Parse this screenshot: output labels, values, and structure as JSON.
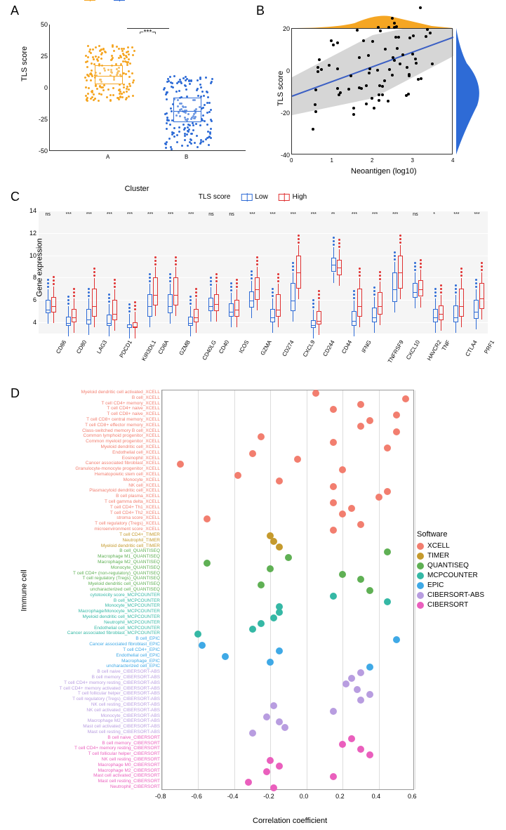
{
  "panelA": {
    "type": "boxplot-jitter",
    "title_label": "A",
    "ylabel": "TLS score",
    "xlabel": "Cluster",
    "legend": [
      {
        "label": "A",
        "color": "#f5a623"
      },
      {
        "label": "B",
        "color": "#2e6bd6"
      }
    ],
    "ylim": [
      -50,
      50
    ],
    "yticks": [
      -50,
      -25,
      0,
      25,
      50
    ],
    "significance": "***",
    "groups": [
      {
        "name": "A",
        "color": "#f5a623",
        "median": 10,
        "q1": 3,
        "q3": 18,
        "whisker_low": -10,
        "whisker_high": 35,
        "jitter_n": 180
      },
      {
        "name": "B",
        "color": "#2e6bd6",
        "median": -18,
        "q1": -27,
        "q3": -8,
        "whisker_low": -48,
        "whisker_high": 10,
        "jitter_n": 180
      }
    ]
  },
  "panelB": {
    "type": "scatter-regression",
    "title_label": "B",
    "xlabel": "Neoantigen (log10)",
    "ylabel": "TLS score",
    "xlim": [
      0,
      4
    ],
    "xticks": [
      0,
      1,
      2,
      3,
      4
    ],
    "ylim": [
      -40,
      20
    ],
    "yticks": [
      -40,
      -20,
      0,
      20
    ],
    "line_color": "#3b5fc4",
    "band_color": "#b0b0b0",
    "marginal_top_color": "#f5a623",
    "marginal_right_color": "#2e6bd6",
    "points_n": 75,
    "slope": 7,
    "intercept": -12
  },
  "panelC": {
    "type": "grouped-boxplot",
    "title_label": "C",
    "ylabel": "Gene expression",
    "legend_title": "TLS score",
    "legend": [
      {
        "label": "Low",
        "color": "#2e6bd6"
      },
      {
        "label": "High",
        "color": "#e03131"
      }
    ],
    "ylim": [
      3,
      14
    ],
    "yticks": [
      4,
      6,
      8,
      10,
      12,
      14
    ],
    "background": "#f0f0f0",
    "genes": [
      {
        "name": "CD86",
        "sig": "ns",
        "low": {
          "med": 5.2,
          "q1": 4.8,
          "q3": 6.0
        },
        "high": {
          "med": 5.5,
          "q1": 4.9,
          "q3": 6.3
        }
      },
      {
        "name": "CD80",
        "sig": "***",
        "low": {
          "med": 4.0,
          "q1": 3.7,
          "q3": 4.5
        },
        "high": {
          "med": 4.5,
          "q1": 4.0,
          "q3": 5.2
        }
      },
      {
        "name": "LAG3",
        "sig": "***",
        "low": {
          "med": 4.3,
          "q1": 3.8,
          "q3": 5.2
        },
        "high": {
          "med": 5.5,
          "q1": 4.5,
          "q3": 7.0
        }
      },
      {
        "name": "PDCD1",
        "sig": "***",
        "low": {
          "med": 4.0,
          "q1": 3.7,
          "q3": 4.7
        },
        "high": {
          "med": 4.8,
          "q1": 4.2,
          "q3": 6.0
        }
      },
      {
        "name": "KIR3DL1",
        "sig": "***",
        "low": {
          "med": 3.6,
          "q1": 3.5,
          "q3": 3.8
        },
        "high": {
          "med": 3.7,
          "q1": 3.5,
          "q3": 4.0
        }
      },
      {
        "name": "CD8A",
        "sig": "***",
        "low": {
          "med": 5.5,
          "q1": 4.5,
          "q3": 6.5
        },
        "high": {
          "med": 6.5,
          "q1": 5.5,
          "q3": 8.0
        }
      },
      {
        "name": "GZMB",
        "sig": "***",
        "low": {
          "med": 5.5,
          "q1": 4.8,
          "q3": 6.5
        },
        "high": {
          "med": 6.5,
          "q1": 5.5,
          "q3": 8.0
        }
      },
      {
        "name": "CD40LG",
        "sig": "***",
        "low": {
          "med": 4.0,
          "q1": 3.7,
          "q3": 4.5
        },
        "high": {
          "med": 4.5,
          "q1": 4.0,
          "q3": 5.2
        }
      },
      {
        "name": "CD40",
        "sig": "ns",
        "low": {
          "med": 5.5,
          "q1": 5.0,
          "q3": 6.2
        },
        "high": {
          "med": 5.7,
          "q1": 5.0,
          "q3": 6.5
        }
      },
      {
        "name": "ICOS",
        "sig": "ns",
        "low": {
          "med": 5.0,
          "q1": 4.5,
          "q3": 5.7
        },
        "high": {
          "med": 5.2,
          "q1": 4.5,
          "q3": 6.0
        }
      },
      {
        "name": "GZMA",
        "sig": "***",
        "low": {
          "med": 6.0,
          "q1": 5.3,
          "q3": 6.8
        },
        "high": {
          "med": 7.0,
          "q1": 6.0,
          "q3": 8.0
        }
      },
      {
        "name": "CD274",
        "sig": "***",
        "low": {
          "med": 4.5,
          "q1": 4.0,
          "q3": 5.2
        },
        "high": {
          "med": 5.2,
          "q1": 4.5,
          "q3": 6.5
        }
      },
      {
        "name": "CXCL9",
        "sig": "***",
        "low": {
          "med": 6.0,
          "q1": 5.0,
          "q3": 7.5
        },
        "high": {
          "med": 8.5,
          "q1": 7.0,
          "q3": 10.0
        }
      },
      {
        "name": "CD244",
        "sig": "***",
        "low": {
          "med": 3.8,
          "q1": 3.5,
          "q3": 4.2
        },
        "high": {
          "med": 4.2,
          "q1": 3.8,
          "q3": 5.0
        }
      },
      {
        "name": "CD44",
        "sig": "**",
        "low": {
          "med": 9.2,
          "q1": 8.5,
          "q3": 9.8
        },
        "high": {
          "med": 9.0,
          "q1": 8.2,
          "q3": 9.6
        }
      },
      {
        "name": "IFNG",
        "sig": "***",
        "low": {
          "med": 4.2,
          "q1": 3.7,
          "q3": 5.0
        },
        "high": {
          "med": 5.5,
          "q1": 4.5,
          "q3": 7.0
        }
      },
      {
        "name": "TNFRSF9",
        "sig": "***",
        "low": {
          "med": 4.5,
          "q1": 4.0,
          "q3": 5.3
        },
        "high": {
          "med": 5.5,
          "q1": 4.7,
          "q3": 6.7
        }
      },
      {
        "name": "CXCL10",
        "sig": "***",
        "low": {
          "med": 7.0,
          "q1": 5.8,
          "q3": 8.5
        },
        "high": {
          "med": 8.5,
          "q1": 7.0,
          "q3": 10.0
        }
      },
      {
        "name": "HAVCR2",
        "sig": "ns",
        "low": {
          "med": 6.8,
          "q1": 6.2,
          "q3": 7.5
        },
        "high": {
          "med": 7.0,
          "q1": 6.3,
          "q3": 7.8
        }
      },
      {
        "name": "TNF",
        "sig": "*",
        "low": {
          "med": 4.5,
          "q1": 4.0,
          "q3": 5.2
        },
        "high": {
          "med": 4.8,
          "q1": 4.2,
          "q3": 5.5
        }
      },
      {
        "name": "CTLA4",
        "sig": "***",
        "low": {
          "med": 4.5,
          "q1": 4.0,
          "q3": 5.5
        },
        "high": {
          "med": 5.5,
          "q1": 4.5,
          "q3": 7.0
        }
      },
      {
        "name": "PRF1",
        "sig": "***",
        "low": {
          "med": 5.0,
          "q1": 4.3,
          "q3": 6.0
        },
        "high": {
          "med": 6.2,
          "q1": 5.2,
          "q3": 7.5
        }
      }
    ]
  },
  "panelD": {
    "type": "dotplot",
    "title_label": "D",
    "xlabel": "Correlation coefficient",
    "ylabel": "Immune cell",
    "xlim": [
      -0.8,
      0.6
    ],
    "xticks": [
      -0.8,
      -0.6,
      -0.4,
      -0.2,
      0.0,
      0.2,
      0.4,
      0.6
    ],
    "legend_title": "Software",
    "software_colors": {
      "XCELL": "#f27e6f",
      "TIMER": "#c59a2d",
      "QUANTISEQ": "#5fb054",
      "MCPCOUNTER": "#35b8a5",
      "EPIC": "#3fa9e6",
      "CIBERSORT-ABS": "#b89de0",
      "CIBERSORT": "#ea5fbd"
    },
    "rows": [
      {
        "label": "Myeloid dendritic cell activated_XCELL",
        "sw": "XCELL",
        "val": 0.05
      },
      {
        "label": "B cell_XCELL",
        "sw": "XCELL",
        "val": 0.55
      },
      {
        "label": "T cell CD4+ memory_XCELL",
        "sw": "XCELL",
        "val": 0.3
      },
      {
        "label": "T cell CD4+ naive_XCELL",
        "sw": "XCELL",
        "val": 0.15
      },
      {
        "label": "T cell CD8+ naive_XCELL",
        "sw": "XCELL",
        "val": 0.5
      },
      {
        "label": "T cell CD8+ central memory_XCELL",
        "sw": "XCELL",
        "val": 0.35
      },
      {
        "label": "T cell CD8+ effector memory_XCELL",
        "sw": "XCELL",
        "val": 0.3
      },
      {
        "label": "Class-switched memory B cell_XCELL",
        "sw": "XCELL",
        "val": 0.5
      },
      {
        "label": "Common lymphoid progenitor_XCELL",
        "sw": "XCELL",
        "val": -0.25
      },
      {
        "label": "Common myeloid progenitor_XCELL",
        "sw": "XCELL",
        "val": 0.15
      },
      {
        "label": "Myeloid dendritic cell_XCELL",
        "sw": "XCELL",
        "val": 0.45
      },
      {
        "label": "Endothelial cell_XCELL",
        "sw": "XCELL",
        "val": -0.3
      },
      {
        "label": "Eosinophil_XCELL",
        "sw": "XCELL",
        "val": -0.05
      },
      {
        "label": "Cancer associated fibroblast_XCELL",
        "sw": "XCELL",
        "val": -0.7
      },
      {
        "label": "Granulocyte-monocyte progenitor_XCELL",
        "sw": "XCELL",
        "val": 0.2
      },
      {
        "label": "Hematopoietic stem cell_XCELL",
        "sw": "XCELL",
        "val": -0.38
      },
      {
        "label": "Monocyte_XCELL",
        "sw": "XCELL",
        "val": -0.15
      },
      {
        "label": "NK cell_XCELL",
        "sw": "XCELL",
        "val": 0.15
      },
      {
        "label": "Plasmacytoid dendritic cell_XCELL",
        "sw": "XCELL",
        "val": 0.45
      },
      {
        "label": "B cell plasma_XCELL",
        "sw": "XCELL",
        "val": 0.4
      },
      {
        "label": "T cell gamma delta_XCELL",
        "sw": "XCELL",
        "val": 0.15
      },
      {
        "label": "T cell CD4+ Th1_XCELL",
        "sw": "XCELL",
        "val": 0.25
      },
      {
        "label": "T cell CD4+ Th2_XCELL",
        "sw": "XCELL",
        "val": 0.2
      },
      {
        "label": "stroma score_XCELL",
        "sw": "XCELL",
        "val": -0.55
      },
      {
        "label": "T cell regulatory (Tregs)_XCELL",
        "sw": "XCELL",
        "val": 0.3
      },
      {
        "label": "microenvironment score_XCELL",
        "sw": "XCELL",
        "val": 0.15
      },
      {
        "label": "T cell CD4+_TIMER",
        "sw": "TIMER",
        "val": -0.2
      },
      {
        "label": "Neutrophil_TIMER",
        "sw": "TIMER",
        "val": -0.18
      },
      {
        "label": "Myeloid dendritic cell_TIMER",
        "sw": "TIMER",
        "val": -0.15
      },
      {
        "label": "B cell_QUANTISEQ",
        "sw": "QUANTISEQ",
        "val": 0.45
      },
      {
        "label": "Macrophage M1_QUANTISEQ",
        "sw": "QUANTISEQ",
        "val": -0.1
      },
      {
        "label": "Macrophage M2_QUANTISEQ",
        "sw": "QUANTISEQ",
        "val": -0.55
      },
      {
        "label": "Monocyte_QUANTISEQ",
        "sw": "QUANTISEQ",
        "val": -0.2
      },
      {
        "label": "T cell CD4+ (non-regulatory)_QUANTISEQ",
        "sw": "QUANTISEQ",
        "val": 0.2
      },
      {
        "label": "T cell regulatory (Tregs)_QUANTISEQ",
        "sw": "QUANTISEQ",
        "val": 0.3
      },
      {
        "label": "Myeloid dendritic cell_QUANTISEQ",
        "sw": "QUANTISEQ",
        "val": -0.25
      },
      {
        "label": "uncharacterized cell_QUANTISEQ",
        "sw": "QUANTISEQ",
        "val": 0.35
      },
      {
        "label": "cytotoxicity score_MCPCOUNTER",
        "sw": "MCPCOUNTER",
        "val": 0.15
      },
      {
        "label": "B cell_MCPCOUNTER",
        "sw": "MCPCOUNTER",
        "val": 0.45
      },
      {
        "label": "Monocyte_MCPCOUNTER",
        "sw": "MCPCOUNTER",
        "val": -0.15
      },
      {
        "label": "Macrophage/Monocyte_MCPCOUNTER",
        "sw": "MCPCOUNTER",
        "val": -0.15
      },
      {
        "label": "Myeloid dendritic cell_MCPCOUNTER",
        "sw": "MCPCOUNTER",
        "val": -0.18
      },
      {
        "label": "Neutrophil_MCPCOUNTER",
        "sw": "MCPCOUNTER",
        "val": -0.25
      },
      {
        "label": "Endothelial cell_MCPCOUNTER",
        "sw": "MCPCOUNTER",
        "val": -0.3
      },
      {
        "label": "Cancer associated fibroblast_MCPCOUNTER",
        "sw": "MCPCOUNTER",
        "val": -0.6
      },
      {
        "label": "B cell_EPIC",
        "sw": "EPIC",
        "val": 0.5
      },
      {
        "label": "Cancer associated fibroblast_EPIC",
        "sw": "EPIC",
        "val": -0.58
      },
      {
        "label": "T cell CD4+_EPIC",
        "sw": "EPIC",
        "val": -0.15
      },
      {
        "label": "Endothelial cell_EPIC",
        "sw": "EPIC",
        "val": -0.45
      },
      {
        "label": "Macrophage_EPIC",
        "sw": "EPIC",
        "val": -0.2
      },
      {
        "label": "uncharacterized cell_EPIC",
        "sw": "EPIC",
        "val": 0.35
      },
      {
        "label": "B cell naive_CIBERSORT-ABS",
        "sw": "CIBERSORT-ABS",
        "val": 0.3
      },
      {
        "label": "B cell memory_CIBERSORT-ABS",
        "sw": "CIBERSORT-ABS",
        "val": 0.25
      },
      {
        "label": "T cell CD4+ memory resting_CIBERSORT-ABS",
        "sw": "CIBERSORT-ABS",
        "val": 0.22
      },
      {
        "label": "T cell CD4+ memory activated_CIBERSORT-ABS",
        "sw": "CIBERSORT-ABS",
        "val": 0.28
      },
      {
        "label": "T cell follicular helper_CIBERSORT-ABS",
        "sw": "CIBERSORT-ABS",
        "val": 0.35
      },
      {
        "label": "T cell regulatory (Tregs)_CIBERSORT-ABS",
        "sw": "CIBERSORT-ABS",
        "val": 0.3
      },
      {
        "label": "NK cell resting_CIBERSORT-ABS",
        "sw": "CIBERSORT-ABS",
        "val": -0.18
      },
      {
        "label": "NK cell activated_CIBERSORT-ABS",
        "sw": "CIBERSORT-ABS",
        "val": 0.15
      },
      {
        "label": "Monocyte_CIBERSORT-ABS",
        "sw": "CIBERSORT-ABS",
        "val": -0.22
      },
      {
        "label": "Macrophage M2_CIBERSORT-ABS",
        "sw": "CIBERSORT-ABS",
        "val": -0.15
      },
      {
        "label": "Mast cell activated_CIBERSORT-ABS",
        "sw": "CIBERSORT-ABS",
        "val": -0.12
      },
      {
        "label": "Mast cell resting_CIBERSORT-ABS",
        "sw": "CIBERSORT-ABS",
        "val": -0.3
      },
      {
        "label": "B cell naive_CIBERSORT",
        "sw": "CIBERSORT",
        "val": 0.25
      },
      {
        "label": "B cell memory_CIBERSORT",
        "sw": "CIBERSORT",
        "val": 0.2
      },
      {
        "label": "T cell CD4+ memory resting_CIBERSORT",
        "sw": "CIBERSORT",
        "val": 0.3
      },
      {
        "label": "T cell follicular helper_CIBERSORT",
        "sw": "CIBERSORT",
        "val": 0.35
      },
      {
        "label": "NK cell resting_CIBERSORT",
        "sw": "CIBERSORT",
        "val": -0.2
      },
      {
        "label": "Macrophage M0_CIBERSORT",
        "sw": "CIBERSORT",
        "val": -0.15
      },
      {
        "label": "Macrophage M2_CIBERSORT",
        "sw": "CIBERSORT",
        "val": -0.22
      },
      {
        "label": "Mast cell activated_CIBERSORT",
        "sw": "CIBERSORT",
        "val": 0.15
      },
      {
        "label": "Mast cell resting_CIBERSORT",
        "sw": "CIBERSORT",
        "val": -0.32
      },
      {
        "label": "Neutrophil_CIBERSORT",
        "sw": "CIBERSORT",
        "val": -0.18
      }
    ]
  }
}
